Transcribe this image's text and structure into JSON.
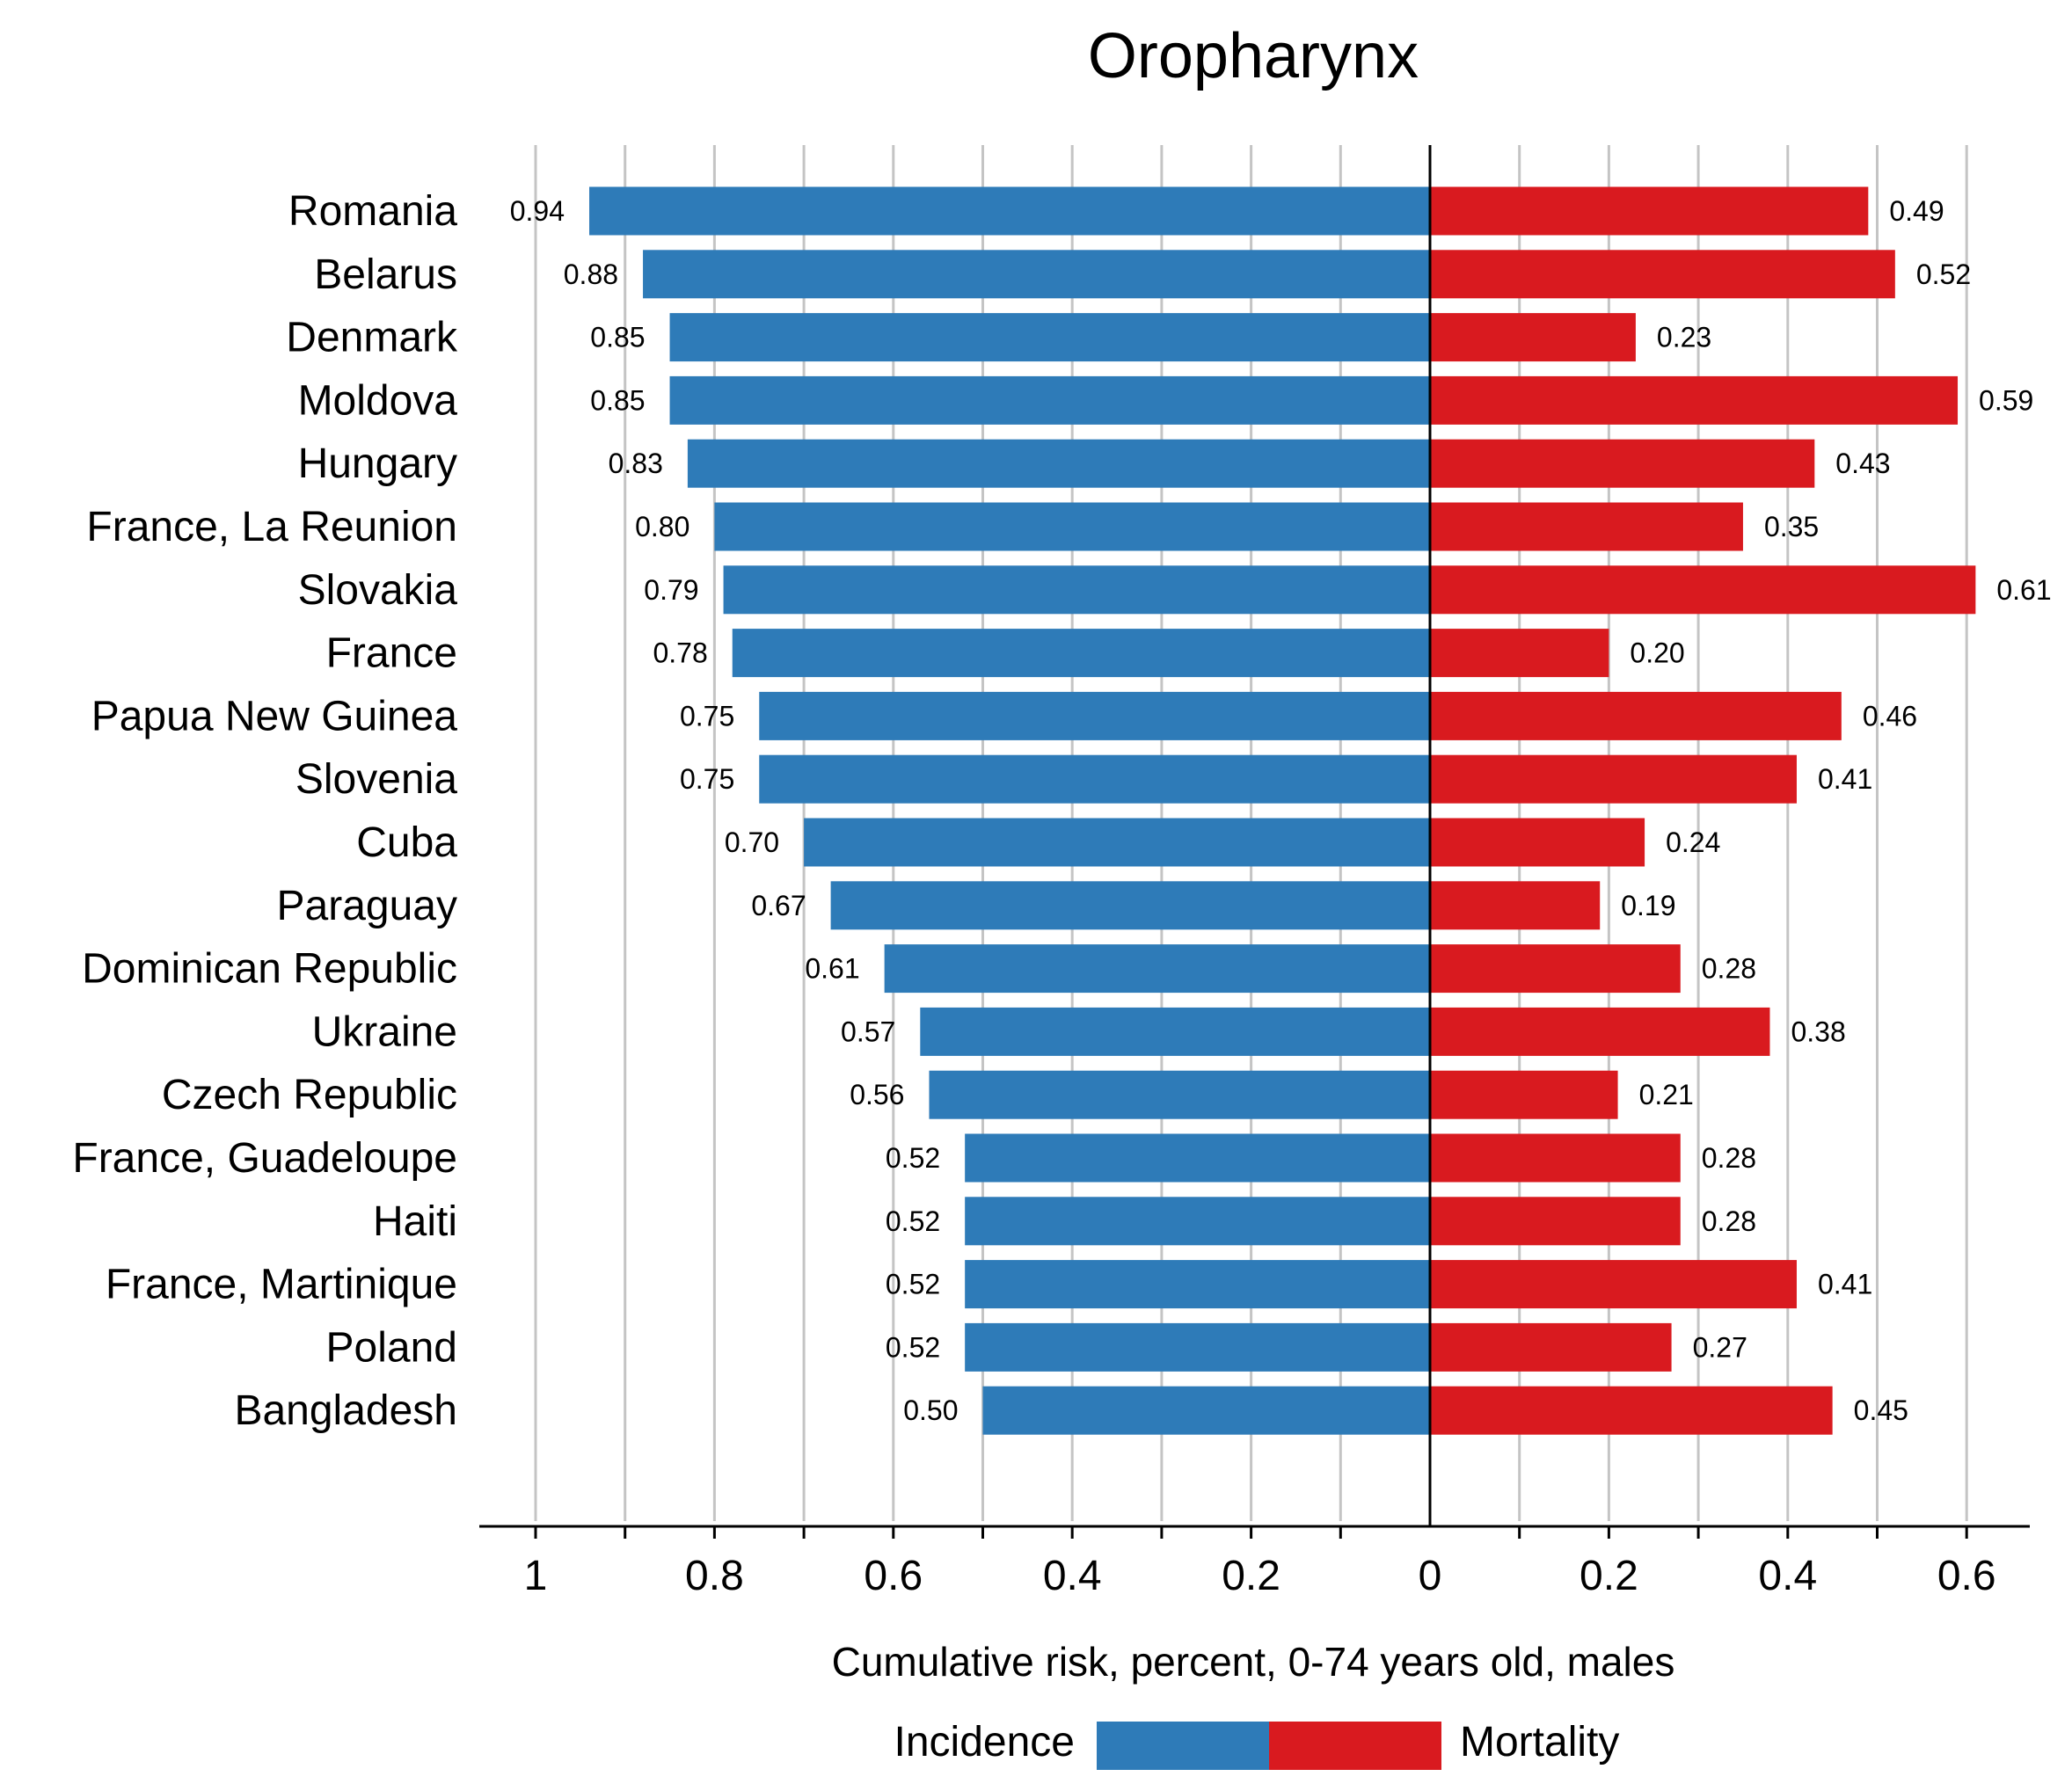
{
  "chart_data": {
    "type": "bar",
    "orientation": "horizontal-diverging",
    "title": "Oropharynx",
    "xlabel": "Cumulative risk, percent, 0-74 years old, males",
    "categories": [
      "Romania",
      "Belarus",
      "Denmark",
      "Moldova",
      "Hungary",
      "France, La Reunion",
      "Slovakia",
      "France",
      "Papua New Guinea",
      "Slovenia",
      "Cuba",
      "Paraguay",
      "Dominican Republic",
      "Ukraine",
      "Czech Republic",
      "France, Guadeloupe",
      "Haiti",
      "France, Martinique",
      "Poland",
      "Bangladesh"
    ],
    "series": [
      {
        "name": "Incidence",
        "color": "#2e7bb8",
        "side": "left",
        "values": [
          0.94,
          0.88,
          0.85,
          0.85,
          0.83,
          0.8,
          0.79,
          0.78,
          0.75,
          0.75,
          0.7,
          0.67,
          0.61,
          0.57,
          0.56,
          0.52,
          0.52,
          0.52,
          0.52,
          0.5
        ],
        "labels": [
          "0.94",
          "0.88",
          "0.85",
          "0.85",
          "0.83",
          "0.80",
          "0.79",
          "0.78",
          "0.75",
          "0.75",
          "0.70",
          "0.67",
          "0.61",
          "0.57",
          "0.56",
          "0.52",
          "0.52",
          "0.52",
          "0.52",
          "0.50"
        ]
      },
      {
        "name": "Mortality",
        "color": "#d91a1f",
        "side": "right",
        "values": [
          0.49,
          0.52,
          0.23,
          0.59,
          0.43,
          0.35,
          0.61,
          0.2,
          0.46,
          0.41,
          0.24,
          0.19,
          0.28,
          0.38,
          0.21,
          0.28,
          0.28,
          0.41,
          0.27,
          0.45
        ],
        "labels": [
          "0.49",
          "0.52",
          "0.23",
          "0.59",
          "0.43",
          "0.35",
          "0.61",
          "0.20",
          "0.46",
          "0.41",
          "0.24",
          "0.19",
          "0.28",
          "0.38",
          "0.21",
          "0.28",
          "0.28",
          "0.41",
          "0.27",
          "0.45"
        ]
      }
    ],
    "xlim_left": [
      0,
      1
    ],
    "xlim_right": [
      0,
      0.6
    ],
    "ticks_left": [
      {
        "v": 1,
        "label": "1"
      },
      {
        "v": 0.8,
        "label": "0.8"
      },
      {
        "v": 0.6,
        "label": "0.6"
      },
      {
        "v": 0.4,
        "label": "0.4"
      },
      {
        "v": 0.2,
        "label": "0.2"
      },
      {
        "v": 0,
        "label": "0"
      }
    ],
    "ticks_right": [
      {
        "v": 0.2,
        "label": "0.2"
      },
      {
        "v": 0.4,
        "label": "0.4"
      },
      {
        "v": 0.6,
        "label": "0.6"
      }
    ],
    "minor_step": 0.1,
    "grid": true,
    "legend": {
      "position": "bottom",
      "left_label": "Incidence",
      "right_label": "Mortality"
    }
  }
}
